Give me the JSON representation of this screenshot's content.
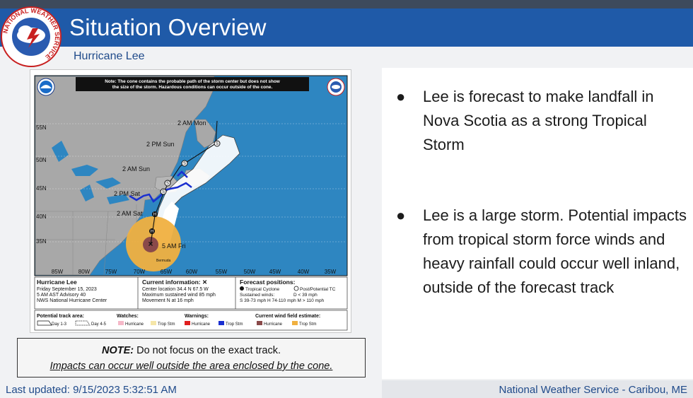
{
  "header": {
    "title": "Situation Overview",
    "subtitle": "Hurricane Lee"
  },
  "logo": {
    "ring_text": "NATIONAL WEATHER SERVICE",
    "icon": "nws-logo-icon"
  },
  "map": {
    "note_banner": [
      "Note: The cone contains the probable path of the storm center but does not show",
      "the size of the storm. Hazardous conditions can occur outside of the cone."
    ],
    "lat_labels": [
      "55N",
      "50N",
      "45N",
      "40N",
      "35N"
    ],
    "lon_labels": [
      "85W",
      "80W",
      "75W",
      "70W",
      "65W",
      "60W",
      "55W",
      "50W",
      "45W",
      "40W",
      "35W"
    ],
    "forecast_points": [
      "2 AM Mon",
      "2 PM Sun",
      "2 AM Sun",
      "2 PM Sat",
      "2 AM Sat",
      "5 AM Fri"
    ],
    "point_markers": [
      "S",
      "S",
      "S",
      "S",
      "H",
      "H"
    ],
    "bermuda_label": "Bermuda",
    "info": {
      "storm_name": "Hurricane Lee",
      "date": "Friday September 15, 2023",
      "advisory": "5 AM AST Advisory 40",
      "center": "NWS National Hurricane Center",
      "current_title": "Current information: ✕",
      "current_lines": [
        "Center location 34.4 N 67.5 W",
        "Maximum sustained wind 85 mph",
        "Movement N at 16 mph"
      ],
      "forecast_title": "Forecast positions:",
      "forecast_line1_a": "Tropical Cyclone",
      "forecast_line1_b": "Post/Potential TC",
      "forecast_line2": "Sustained winds:",
      "forecast_line2_b": "D < 39 mph",
      "forecast_line3": "S 39-73 mph  H 74-110 mph  M > 110 mph"
    },
    "legend": {
      "track_area_title": "Potential track area:",
      "day13": "Day 1-3",
      "day45": "Day 4-5",
      "watches_title": "Watches:",
      "warnings_title": "Warnings:",
      "wind_title": "Current wind field estimate:",
      "hurricane": "Hurricane",
      "trop_stm": "Trop Stm",
      "colors": {
        "hurricane_watch": "#f5b8c8",
        "trop_watch": "#f5e6a8",
        "hurricane_warning": "#e02020",
        "trop_warning": "#1a2fd0",
        "hurricane_wind": "#8a4a4a",
        "trop_wind": "#f0b040"
      }
    }
  },
  "note": {
    "bold": "NOTE:",
    "line1": " Do not focus on the exact track.",
    "line2": "Impacts can occur well outside the area enclosed by the cone."
  },
  "bullets": [
    {
      "marker": "●",
      "text": "Lee is forecast to make landfall in Nova Scotia as a strong Tropical Storm"
    },
    {
      "marker": "●",
      "text": "Lee is a large storm. Potential impacts from tropical storm force winds and heavy rainfall could occur well inland, outside of the forecast track"
    }
  ],
  "footer": {
    "updated": "Last updated: 9/15/2023 5:32:51 AM",
    "office": "National Weather Service - Caribou, ME"
  },
  "colors": {
    "header_blue": "#1f5aa8",
    "ocean": "#2e86c1",
    "land": "#a8a8a8",
    "cone": "#ffffff",
    "wind_field": "#f0b040"
  }
}
